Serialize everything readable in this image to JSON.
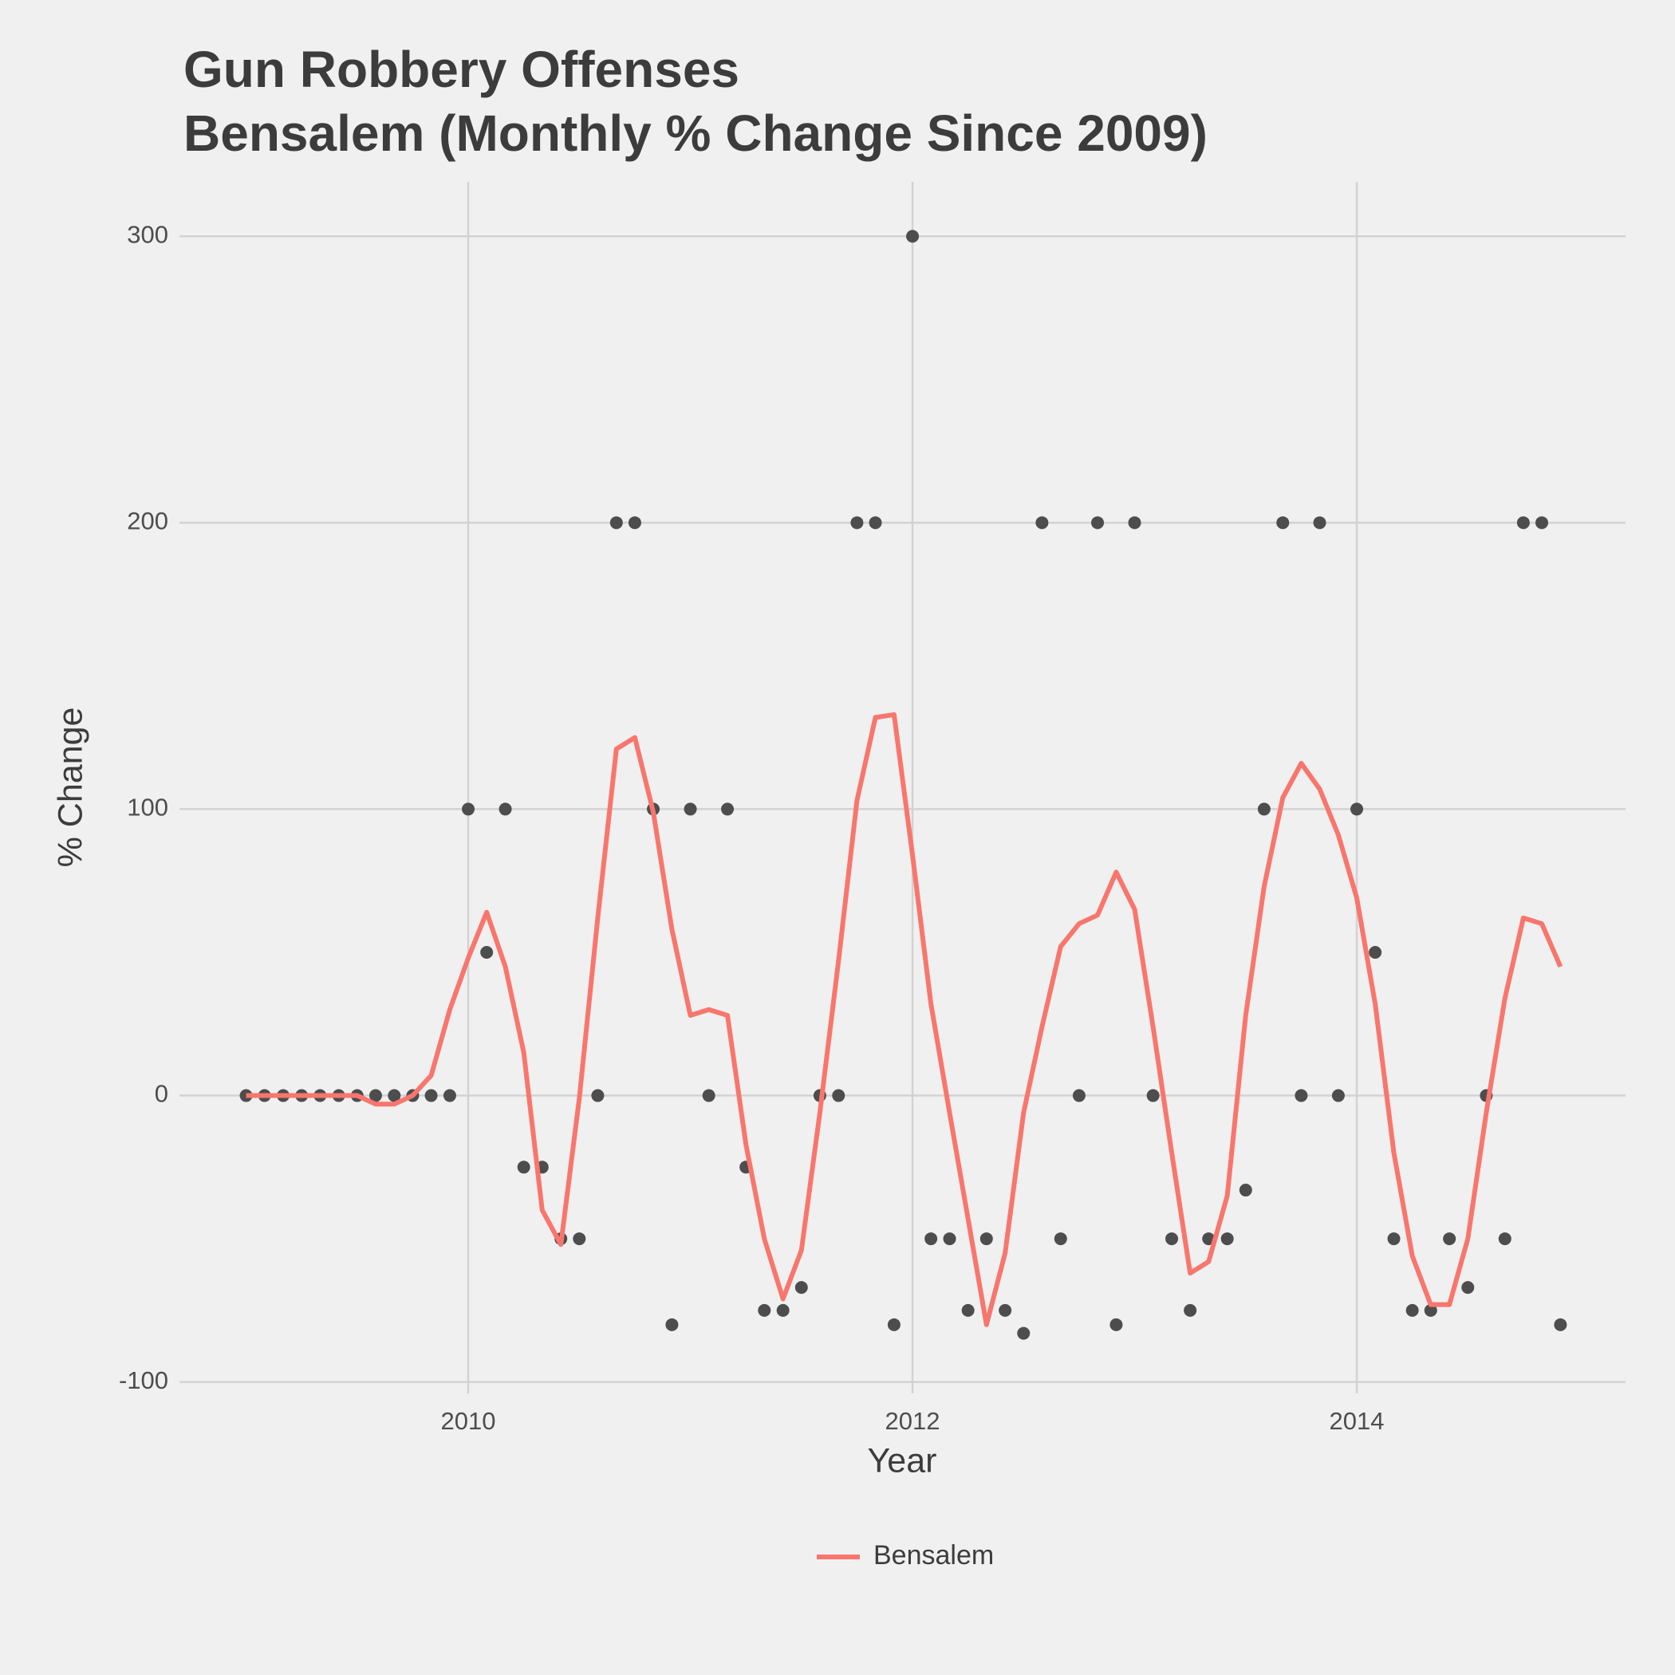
{
  "chart_data": {
    "type": "line",
    "title": "Gun Robbery Offenses",
    "subtitle": "Bensalem (Monthly % Change Since 2009)",
    "x_label": "Year",
    "y_label": "% Change",
    "x": [
      2009,
      2009.083,
      2009.167,
      2009.25,
      2009.333,
      2009.417,
      2009.5,
      2009.583,
      2009.667,
      2009.75,
      2009.833,
      2009.917,
      2010,
      2010.083,
      2010.167,
      2010.25,
      2010.333,
      2010.417,
      2010.5,
      2010.583,
      2010.667,
      2010.75,
      2010.833,
      2010.917,
      2011,
      2011.083,
      2011.167,
      2011.25,
      2011.333,
      2011.417,
      2011.5,
      2011.583,
      2011.667,
      2011.75,
      2011.833,
      2011.917,
      2012,
      2012.083,
      2012.167,
      2012.25,
      2012.333,
      2012.417,
      2012.5,
      2012.583,
      2012.667,
      2012.75,
      2012.833,
      2012.917,
      2013,
      2013.083,
      2013.167,
      2013.25,
      2013.333,
      2013.417,
      2013.5,
      2013.583,
      2013.667,
      2013.75,
      2013.833,
      2013.917,
      2014,
      2014.083,
      2014.167,
      2014.25,
      2014.333,
      2014.417,
      2014.5,
      2014.583,
      2014.667,
      2014.75,
      2014.833,
      2014.917
    ],
    "series": [
      {
        "name": "Bensalem",
        "color": "#f8766d",
        "values": [
          0,
          0,
          0,
          0,
          0,
          0,
          0,
          -3,
          -3,
          0,
          7,
          30,
          48,
          64,
          45,
          15,
          -40,
          -52,
          -1,
          62,
          121,
          125,
          99,
          58,
          28,
          30,
          28,
          -17,
          -50,
          -71,
          -54,
          -6,
          47,
          103,
          132,
          133,
          84,
          32,
          -6,
          -43,
          -80,
          -55,
          -6,
          24,
          52,
          60,
          63,
          78,
          65,
          24,
          -20,
          -62,
          -58,
          -35,
          28,
          73,
          104,
          116,
          107,
          91,
          69,
          32,
          -20,
          -56,
          -73,
          -73,
          -50,
          -6,
          34,
          62,
          60,
          45
        ]
      }
    ],
    "points": {
      "color": "#4d4d4d",
      "values": [
        0,
        0,
        0,
        0,
        0,
        0,
        0,
        0,
        0,
        0,
        0,
        0,
        100,
        50,
        100,
        -25,
        -25,
        -50,
        -50,
        0,
        200,
        200,
        100,
        -80,
        100,
        0,
        100,
        -25,
        -75,
        -75,
        -67,
        0,
        0,
        200,
        200,
        -80,
        300,
        -50,
        -50,
        -75,
        -50,
        -75,
        -83,
        200,
        -50,
        0,
        200,
        -80,
        200,
        0,
        -50,
        -75,
        -50,
        -50,
        -33,
        100,
        200,
        0,
        200,
        0,
        100,
        50,
        -50,
        -75,
        -75,
        -50,
        -67,
        0,
        -50,
        200,
        200,
        -80
      ]
    },
    "xlim": [
      2008.7,
      2015.21
    ],
    "ylim": [
      -104,
      319
    ],
    "xticks": [
      2010,
      2012,
      2014
    ],
    "yticks": [
      -100,
      0,
      100,
      200,
      300
    ],
    "grid": true,
    "legend": "bottom"
  }
}
